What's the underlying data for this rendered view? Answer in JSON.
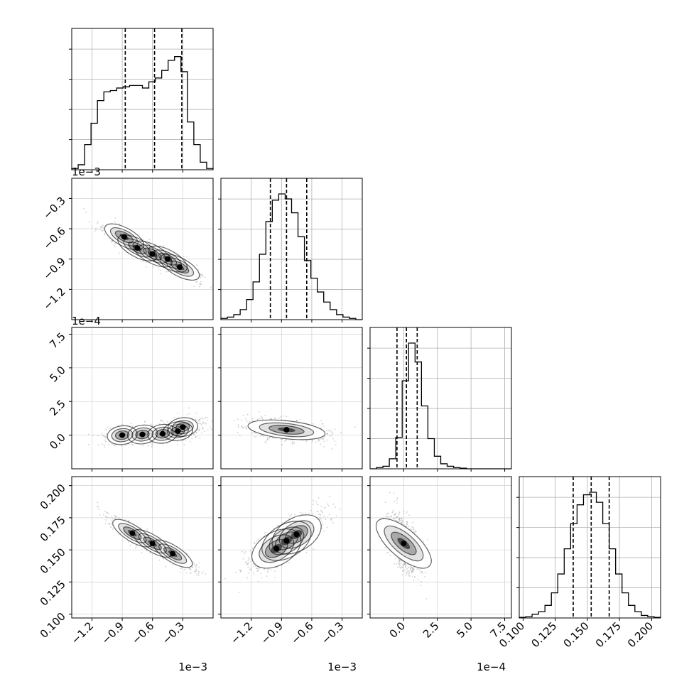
{
  "figure": {
    "type": "corner-plot",
    "background": "#ffffff"
  },
  "chart_data": {
    "type": "corner",
    "parameters": [
      {
        "range": [
          -0.0014,
          -0.0
        ],
        "ticks": [
          -0.0012,
          -0.0009,
          -0.0006,
          -0.0003
        ],
        "tick_labels": [
          "−1.2",
          "−0.9",
          "−0.6",
          "−0.3"
        ],
        "offset_label": "1e−3",
        "quantiles": [
          -0.00087,
          -0.00058,
          -0.00031
        ]
      },
      {
        "range": [
          -0.0015,
          -0.0001
        ],
        "ticks": [
          -0.0012,
          -0.0009,
          -0.0006,
          -0.0003
        ],
        "tick_labels": [
          "−1.2",
          "−0.9",
          "−0.6",
          "−0.3"
        ],
        "offset_label": "1e−3",
        "quantiles": [
          -0.00101,
          -0.00085,
          -0.00065
        ]
      },
      {
        "range": [
          -0.00025,
          0.0008
        ],
        "ticks": [
          0.0,
          0.00025,
          0.0005,
          0.00075
        ],
        "tick_labels": [
          "0.0",
          "2.5",
          "5.0",
          "7.5"
        ],
        "offset_label": "1e−4",
        "quantiles": [
          -5e-05,
          2e-05,
          0.0001
        ]
      },
      {
        "range": [
          0.097,
          0.207
        ],
        "ticks": [
          0.1,
          0.125,
          0.15,
          0.175,
          0.2
        ],
        "tick_labels": [
          "0.100",
          "0.125",
          "0.150",
          "0.175",
          "0.200"
        ],
        "offset_label": "",
        "quantiles": [
          0.139,
          0.153,
          0.167
        ]
      }
    ],
    "histograms": [
      [
        0.01,
        0.04,
        0.2,
        0.37,
        0.55,
        0.62,
        0.63,
        0.65,
        0.66,
        0.67,
        0.67,
        0.65,
        0.7,
        0.73,
        0.79,
        0.87,
        0.9,
        0.78,
        0.38,
        0.2,
        0.06,
        0.01
      ],
      [
        0.01,
        0.02,
        0.04,
        0.08,
        0.16,
        0.3,
        0.52,
        0.78,
        0.95,
        1.0,
        0.96,
        0.85,
        0.66,
        0.47,
        0.33,
        0.22,
        0.14,
        0.08,
        0.04,
        0.02,
        0.01,
        0.0
      ],
      [
        0.0,
        0.01,
        0.02,
        0.08,
        0.25,
        0.7,
        1.0,
        0.85,
        0.5,
        0.24,
        0.1,
        0.04,
        0.02,
        0.01,
        0.005,
        0.0,
        0.0,
        0.0,
        0.0,
        0.0,
        0.0,
        0.0
      ],
      [
        0.005,
        0.01,
        0.03,
        0.05,
        0.1,
        0.2,
        0.35,
        0.55,
        0.75,
        0.9,
        0.98,
        1.0,
        0.92,
        0.75,
        0.55,
        0.35,
        0.2,
        0.1,
        0.05,
        0.02,
        0.01,
        0.005
      ]
    ],
    "pairs": [
      {
        "row": 1,
        "col": 0,
        "centers": [
          [
            -0.00088,
            -0.00068
          ],
          [
            -0.00075,
            -0.00079
          ],
          [
            -0.0006,
            -0.00085
          ],
          [
            -0.00045,
            -0.0009
          ],
          [
            -0.00033,
            -0.00098
          ]
        ],
        "spread": [
          0.00011,
          7e-05
        ],
        "rho": -0.85
      },
      {
        "row": 2,
        "col": 0,
        "centers": [
          [
            -0.0009,
            0.0
          ],
          [
            -0.0007,
            5e-06
          ],
          [
            -0.0005,
            1e-05
          ],
          [
            -0.00035,
            3e-05
          ],
          [
            -0.0003,
            6e-05
          ]
        ],
        "spread": [
          0.0001,
          3e-05
        ],
        "rho": 0.3
      },
      {
        "row": 2,
        "col": 1,
        "centers": [
          [
            -0.00085,
            4e-05
          ]
        ],
        "spread": [
          0.00015,
          3e-05
        ],
        "rho": -0.4
      },
      {
        "row": 3,
        "col": 0,
        "centers": [
          [
            -0.0008,
            0.163
          ],
          [
            -0.0006,
            0.155
          ],
          [
            -0.0004,
            0.147
          ]
        ],
        "spread": [
          0.00011,
          0.006
        ],
        "rho": -0.9
      },
      {
        "row": 3,
        "col": 1,
        "centers": [
          [
            -0.00095,
            0.151
          ],
          [
            -0.00085,
            0.157
          ],
          [
            -0.00075,
            0.162
          ]
        ],
        "spread": [
          0.00013,
          0.008
        ],
        "rho": 0.75
      },
      {
        "row": 3,
        "col": 2,
        "centers": [
          [
            0.0,
            0.155
          ]
        ],
        "spread": [
          5e-05,
          0.009
        ],
        "rho": -0.5
      }
    ],
    "grid": true
  }
}
